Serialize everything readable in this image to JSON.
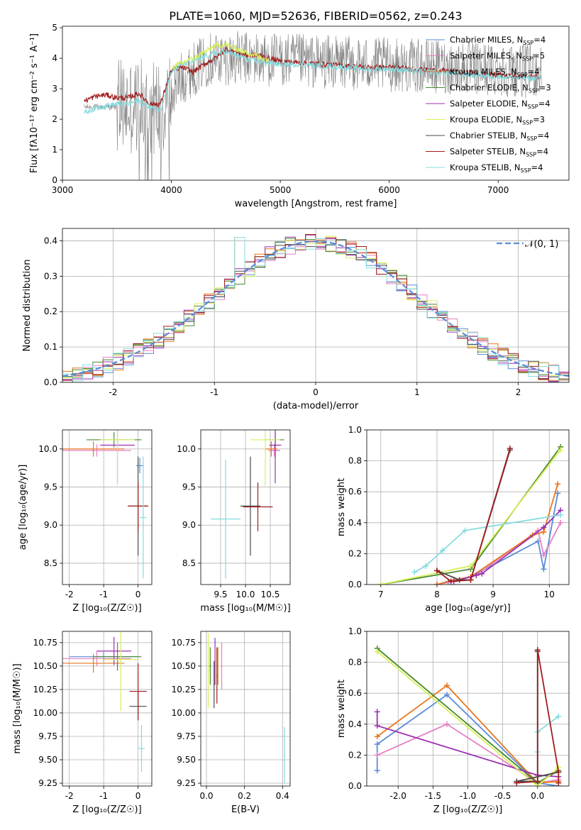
{
  "figure_title": "PLATE=1060, MJD=52636, FIBERID=0562, z=0.243",
  "colors": {
    "Chabrier MILES": "#5b8bd9",
    "Salpeter MILES": "#e77fc3",
    "Kroupa MILES": "#e8761c",
    "Chabrier ELODIE": "#4a8a2f",
    "Salpeter ELODIE": "#9b2fb1",
    "Kroupa ELODIE": "#d6f05a",
    "Chabrier STELIB": "#4a4a4a",
    "Salpeter STELIB": "#a11c1c",
    "Kroupa STELIB": "#86dcdf",
    "data": "#7f7f7f",
    "normal": "#5b8bd9"
  },
  "chart_data": [
    {
      "id": "spectrum",
      "type": "line",
      "title": "PLATE=1060, MJD=52636, FIBERID=0562, z=0.243",
      "xlabel": "wavelength [Angstrom, rest frame]",
      "ylabel": "Flux [fλ10⁻¹⁷ erg cm⁻² s⁻¹ A⁻¹]",
      "xlim": [
        3000,
        7650
      ],
      "ylim": [
        0,
        5.05
      ],
      "xticks": [
        3000,
        4000,
        5000,
        6000,
        7000
      ],
      "yticks": [
        0,
        1,
        2,
        3,
        4,
        5
      ],
      "grid": false,
      "legend_position": "top-right",
      "legend": [
        "Chabrier MILES, N_SSP=4",
        "Salpeter MILES, N_SSP=5",
        "Kroupa MILES, N_SSP=4",
        "Chabrier ELODIE, N_SSP=3",
        "Salpeter ELODIE, N_SSP=4",
        "Kroupa ELODIE, N_SSP=3",
        "Chabrier STELIB, N_SSP=4",
        "Salpeter STELIB, N_SSP=4",
        "Kroupa STELIB, N_SSP=4"
      ],
      "series": [
        {
          "name": "Salpeter STELIB",
          "x": [
            3200,
            3300,
            3400,
            3500,
            3600,
            3700,
            3800,
            3900,
            4000,
            4100,
            4200,
            4300,
            4400,
            4500,
            4600,
            4700,
            4800,
            4900,
            5000,
            5200,
            5400,
            5600,
            5800,
            6000,
            6200,
            6400,
            6600,
            6800,
            7000,
            7200,
            7400
          ],
          "y": [
            2.6,
            2.75,
            2.8,
            2.7,
            2.7,
            2.85,
            2.5,
            2.5,
            3.6,
            3.7,
            3.55,
            3.8,
            4.0,
            4.3,
            4.2,
            4.1,
            4.1,
            4.0,
            3.9,
            3.85,
            3.8,
            3.75,
            3.7,
            3.7,
            3.65,
            3.6,
            3.55,
            3.5,
            3.45,
            3.4,
            3.4
          ]
        },
        {
          "name": "Kroupa STELIB",
          "x": [
            3200,
            3300,
            3400,
            3500,
            3600,
            3700,
            3800,
            3900,
            4000,
            4100,
            4200,
            4300,
            4400,
            4500,
            4600,
            4700,
            4800,
            4900,
            5000,
            5200,
            5400,
            5600,
            5800,
            6000,
            6200,
            6400,
            6600,
            6800,
            7000,
            7200,
            7400
          ],
          "y": [
            2.2,
            2.35,
            2.45,
            2.5,
            2.5,
            2.6,
            2.4,
            2.3,
            3.55,
            3.8,
            3.9,
            4.05,
            4.15,
            4.2,
            4.1,
            3.95,
            3.9,
            3.85,
            3.8,
            3.8,
            3.75,
            3.7,
            3.65,
            3.65,
            3.6,
            3.55,
            3.5,
            3.45,
            3.4,
            3.35,
            3.35
          ]
        },
        {
          "name": "Kroupa ELODIE",
          "x": [
            4000,
            4200,
            4400,
            4500,
            4600,
            4800,
            4900
          ],
          "y": [
            3.7,
            4.0,
            4.4,
            4.45,
            4.3,
            4.05,
            3.95
          ]
        }
      ]
    },
    {
      "id": "residuals",
      "type": "line",
      "xlabel": "(data-model)/error",
      "ylabel": "Normed distribution",
      "xlim": [
        -2.5,
        2.5
      ],
      "ylim": [
        0,
        0.435
      ],
      "xticks": [
        -2,
        -1,
        0,
        1,
        2
      ],
      "yticks": [
        0.0,
        0.1,
        0.2,
        0.3,
        0.4
      ],
      "grid": true,
      "legend_position": "top-right",
      "legend": [
        "𝒩(0, 1)"
      ]
    },
    {
      "id": "age-vs-Z",
      "type": "scatter",
      "xlabel": "Z [log₁₀(Z/Z☉)]",
      "ylabel": "age  [log₁₀(age/yr)]",
      "xlim": [
        -2.2,
        0.4
      ],
      "ylim": [
        8.22,
        10.25
      ],
      "xticks": [
        -2,
        -1,
        0
      ],
      "yticks": [
        8.5,
        9.0,
        9.5,
        10.0
      ],
      "grid": true
    },
    {
      "id": "age-vs-mass",
      "type": "scatter",
      "xlabel": "mass [log₁₀(M/M☉)]",
      "xlim": [
        9.1,
        10.9
      ],
      "ylim": [
        8.22,
        10.25
      ],
      "xticks": [
        9.5,
        10.0,
        10.5
      ],
      "yticks": [
        8.5,
        9.0,
        9.5,
        10.0
      ],
      "grid": true
    },
    {
      "id": "massweight-vs-age",
      "type": "line",
      "xlabel": "age  [log₁₀(age/yr)]",
      "ylabel": "mass weight",
      "xlim": [
        6.75,
        10.35
      ],
      "ylim": [
        0,
        1
      ],
      "xticks": [
        7,
        8,
        9,
        10
      ],
      "yticks": [
        0.0,
        0.2,
        0.4,
        0.6,
        0.8,
        1.0
      ],
      "grid": true,
      "series": [
        {
          "name": "Chabrier MILES",
          "x": [
            8.0,
            8.2,
            8.6,
            9.8,
            9.9,
            10.15
          ],
          "y": [
            0.0,
            0.02,
            0.05,
            0.28,
            0.1,
            0.59
          ]
        },
        {
          "name": "Salpeter MILES",
          "x": [
            8.0,
            8.3,
            8.7,
            9.8,
            9.9,
            10.2
          ],
          "y": [
            0.0,
            0.02,
            0.06,
            0.35,
            0.19,
            0.4
          ]
        },
        {
          "name": "Kroupa MILES",
          "x": [
            8.0,
            8.3,
            8.6,
            9.7,
            9.9,
            10.15
          ],
          "y": [
            0.0,
            0.03,
            0.05,
            0.32,
            0.34,
            0.65
          ]
        },
        {
          "name": "Chabrier ELODIE",
          "x": [
            7.0,
            8.6,
            10.2
          ],
          "y": [
            0.0,
            0.1,
            0.89
          ]
        },
        {
          "name": "Salpeter ELODIE",
          "x": [
            8.3,
            8.7,
            8.8,
            9.9,
            10.2
          ],
          "y": [
            0.02,
            0.06,
            0.07,
            0.37,
            0.48
          ]
        },
        {
          "name": "Kroupa ELODIE",
          "x": [
            7.0,
            8.6,
            10.2
          ],
          "y": [
            0.0,
            0.12,
            0.87
          ]
        },
        {
          "name": "Chabrier STELIB",
          "x": [
            8.0,
            8.4,
            8.6,
            9.3
          ],
          "y": [
            0.09,
            0.03,
            0.03,
            0.87
          ]
        },
        {
          "name": "Kroupa STELIB",
          "x": [
            7.6,
            7.8,
            8.1,
            8.5,
            10.2
          ],
          "y": [
            0.08,
            0.12,
            0.22,
            0.35,
            0.45
          ]
        },
        {
          "name": "Salpeter STELIB",
          "x": [
            8.0,
            8.25,
            8.6,
            9.3
          ],
          "y": [
            0.09,
            0.02,
            0.03,
            0.88
          ]
        }
      ]
    },
    {
      "id": "mass-vs-Z",
      "type": "scatter",
      "xlabel": "Z [log₁₀(Z/Z☉)]",
      "ylabel": "mass [log₁₀(M/M☉)]",
      "xlim": [
        -2.2,
        0.4
      ],
      "ylim": [
        9.22,
        10.87
      ],
      "xticks": [
        -2,
        -1,
        0
      ],
      "yticks": [
        9.25,
        9.5,
        9.75,
        10.0,
        10.25,
        10.5,
        10.75
      ],
      "grid": true
    },
    {
      "id": "mass-vs-EBV",
      "type": "scatter",
      "xlabel": "E(B-V)",
      "xlim": [
        -0.03,
        0.44
      ],
      "ylim": [
        9.22,
        10.87
      ],
      "xticks": [
        0.0,
        0.2,
        0.4
      ],
      "yticks": [
        9.25,
        9.5,
        9.75,
        10.0,
        10.25,
        10.5,
        10.75
      ],
      "grid": true
    },
    {
      "id": "massweight-vs-Z",
      "type": "line",
      "xlabel": "Z [log₁₀(Z/Z☉)]",
      "ylabel": "mass weight",
      "xlim": [
        -2.45,
        0.45
      ],
      "ylim": [
        0,
        1
      ],
      "xticks": [
        -2.0,
        -1.5,
        -1.0,
        -0.5,
        0.0
      ],
      "yticks": [
        0.0,
        0.2,
        0.4,
        0.6,
        0.8,
        1.0
      ],
      "grid": true,
      "series": [
        {
          "name": "Chabrier MILES",
          "x": [
            -2.3,
            -2.3,
            -1.3,
            0.0,
            0.3
          ],
          "y": [
            0.1,
            0.27,
            0.59,
            0.02,
            0.0
          ]
        },
        {
          "name": "Salpeter MILES",
          "x": [
            -2.3,
            -1.3,
            0.0,
            0.3
          ],
          "y": [
            0.2,
            0.4,
            0.02,
            0.04
          ]
        },
        {
          "name": "Kroupa MILES",
          "x": [
            -2.3,
            -1.3,
            0.0,
            0.3
          ],
          "y": [
            0.32,
            0.65,
            0.02,
            0.03
          ]
        },
        {
          "name": "Chabrier ELODIE",
          "x": [
            -2.3,
            0.0,
            0.3
          ],
          "y": [
            0.89,
            0.02,
            0.1
          ]
        },
        {
          "name": "Salpeter ELODIE",
          "x": [
            -2.3,
            -2.3,
            0.0,
            0.3
          ],
          "y": [
            0.48,
            0.39,
            0.07,
            0.06
          ]
        },
        {
          "name": "Kroupa ELODIE",
          "x": [
            -2.3,
            0.0,
            0.3
          ],
          "y": [
            0.87,
            0.0,
            0.12
          ]
        },
        {
          "name": "Chabrier STELIB",
          "x": [
            0.0,
            0.0,
            -0.3,
            0.3
          ],
          "y": [
            0.87,
            0.03,
            0.03,
            0.09
          ]
        },
        {
          "name": "Kroupa STELIB",
          "x": [
            0.0,
            0.0,
            0.3
          ],
          "y": [
            0.22,
            0.35,
            0.45
          ]
        },
        {
          "name": "Salpeter STELIB",
          "x": [
            -0.3,
            0.0,
            0.0,
            0.3,
            0.3
          ],
          "y": [
            0.02,
            0.03,
            0.88,
            0.09,
            0.02
          ]
        }
      ]
    }
  ],
  "crosses": {
    "age_Z": [
      {
        "s": "Chabrier MILES",
        "x": 0.05,
        "xerr": 0.1,
        "y": 9.78,
        "yerr": 0.1
      },
      {
        "s": "Salpeter MILES",
        "x": -1.2,
        "xerr": 1.0,
        "y": 9.98,
        "yerr": 0.08
      },
      {
        "s": "Kroupa MILES",
        "x": -1.3,
        "xerr": 0.9,
        "y": 10.0,
        "yerr": 0.1
      },
      {
        "s": "Chabrier ELODIE",
        "x": -0.7,
        "xerr": 0.8,
        "y": 10.12,
        "yerr": 0.1
      },
      {
        "s": "Salpeter ELODIE",
        "x": -0.6,
        "xerr": 0.5,
        "y": 10.05,
        "yerr": 0.5
      },
      {
        "s": "Kroupa ELODIE",
        "x": -0.6,
        "xerr": 0.5,
        "y": 10.12,
        "yerr": 0.6
      },
      {
        "s": "Chabrier STELIB",
        "x": 0.0,
        "xerr": 0.25,
        "y": 9.25,
        "yerr": 0.65
      },
      {
        "s": "Salpeter STELIB",
        "x": 0.0,
        "xerr": 0.3,
        "y": 9.25,
        "yerr": 0.32
      },
      {
        "s": "Kroupa STELIB",
        "x": 0.15,
        "xerr": 0.1,
        "y": 9.1,
        "yerr": 0.8
      }
    ],
    "age_mass": [
      {
        "s": "Chabrier MILES",
        "x": 10.6,
        "xerr": 0.1,
        "y": 9.98,
        "yerr": 0.1
      },
      {
        "s": "Salpeter MILES",
        "x": 10.58,
        "xerr": 0.12,
        "y": 9.98,
        "yerr": 0.08
      },
      {
        "s": "Kroupa MILES",
        "x": 10.52,
        "xerr": 0.12,
        "y": 10.0,
        "yerr": 0.1
      },
      {
        "s": "Chabrier ELODIE",
        "x": 10.6,
        "xerr": 0.18,
        "y": 10.12,
        "yerr": 0.1
      },
      {
        "s": "Salpeter ELODIE",
        "x": 10.6,
        "xerr": 0.12,
        "y": 10.05,
        "yerr": 0.5
      },
      {
        "s": "Kroupa ELODIE",
        "x": 10.4,
        "xerr": 0.3,
        "y": 10.12,
        "yerr": 0.6
      },
      {
        "s": "Chabrier STELIB",
        "x": 10.1,
        "xerr": 0.2,
        "y": 9.25,
        "yerr": 0.65
      },
      {
        "s": "Salpeter STELIB",
        "x": 10.25,
        "xerr": 0.3,
        "y": 9.24,
        "yerr": 0.32
      },
      {
        "s": "Kroupa STELIB",
        "x": 9.6,
        "xerr": 0.3,
        "y": 9.08,
        "yerr": 0.78
      }
    ],
    "mass_Z": [
      {
        "s": "Chabrier MILES",
        "x": -1.0,
        "xerr": 1.0,
        "y": 10.6,
        "yerr": 0.05
      },
      {
        "s": "Salpeter MILES",
        "x": -1.2,
        "xerr": 1.0,
        "y": 10.58,
        "yerr": 0.08
      },
      {
        "s": "Kroupa MILES",
        "x": -1.3,
        "xerr": 0.9,
        "y": 10.53,
        "yerr": 0.1
      },
      {
        "s": "Chabrier ELODIE",
        "x": -0.6,
        "xerr": 0.7,
        "y": 10.6,
        "yerr": 0.15
      },
      {
        "s": "Salpeter ELODIE",
        "x": -0.7,
        "xerr": 0.5,
        "y": 10.66,
        "yerr": 0.15
      },
      {
        "s": "Kroupa ELODIE",
        "x": -0.5,
        "xerr": 0.5,
        "y": 10.57,
        "yerr": 0.55
      },
      {
        "s": "Chabrier STELIB",
        "x": 0.0,
        "xerr": 0.25,
        "y": 10.07,
        "yerr": 0.15
      },
      {
        "s": "Salpeter STELIB",
        "x": 0.0,
        "xerr": 0.25,
        "y": 10.23,
        "yerr": 0.3
      },
      {
        "s": "Kroupa STELIB",
        "x": 0.1,
        "xerr": 0.1,
        "y": 9.62,
        "yerr": 0.25
      }
    ],
    "mass_EBV": [
      {
        "s": "Kroupa ELODIE",
        "x": 0.01,
        "xerr": 0.005,
        "y": 10.45,
        "yerr": 0.4
      },
      {
        "s": "Chabrier ELODIE",
        "x": 0.02,
        "xerr": 0.005,
        "y": 10.5,
        "yerr": 0.2
      },
      {
        "s": "Chabrier STELIB",
        "x": 0.04,
        "xerr": 0.003,
        "y": 10.3,
        "yerr": 0.25
      },
      {
        "s": "Salpeter ELODIE",
        "x": 0.045,
        "xerr": 0.003,
        "y": 10.55,
        "yerr": 0.25
      },
      {
        "s": "Salpeter STELIB",
        "x": 0.055,
        "xerr": 0.003,
        "y": 10.4,
        "yerr": 0.3
      },
      {
        "s": "Kroupa MILES",
        "x": 0.06,
        "xerr": 0.003,
        "y": 10.5,
        "yerr": 0.2
      },
      {
        "s": "Salpeter MILES",
        "x": 0.08,
        "xerr": 0.003,
        "y": 10.5,
        "yerr": 0.25
      },
      {
        "s": "Kroupa STELIB",
        "x": 0.41,
        "xerr": 0.003,
        "y": 9.55,
        "yerr": 0.3
      }
    ]
  }
}
